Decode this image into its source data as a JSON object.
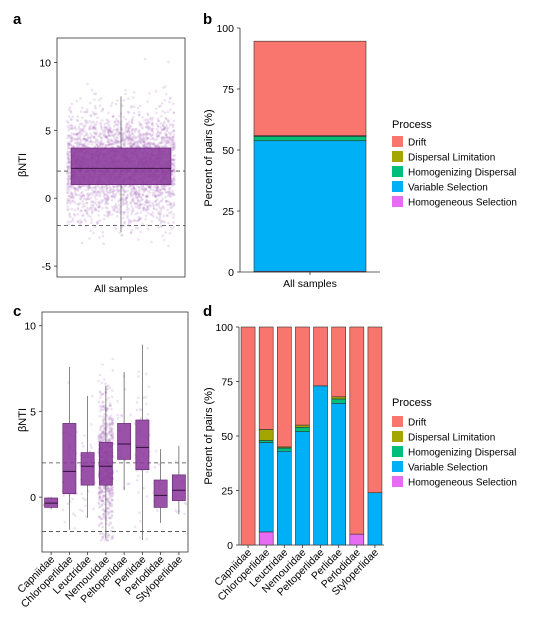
{
  "panel_letters": [
    "a",
    "b",
    "c",
    "d"
  ],
  "colors": {
    "box_fill": "#8B3A9B",
    "box_stroke": "#6a2a78",
    "jitter": "#b07cc6",
    "Drift": "#F8766D",
    "Dispersal Limitation": "#A3A500",
    "Homogenizing Dispersal": "#00BF7D",
    "Variable Selection": "#00B0F6",
    "Homogeneous Selection": "#E76BF3"
  },
  "chart_data": [
    {
      "id": "a",
      "type": "box",
      "ylabel": "βNTI",
      "categories": [
        "All samples"
      ],
      "ylim": [
        -5.8,
        11.8
      ],
      "yticks": [
        -5,
        0,
        5,
        10
      ],
      "reference_lines": [
        -2,
        2
      ],
      "boxes": [
        {
          "category": "All samples",
          "q1": 1.0,
          "median": 2.2,
          "q3": 3.7,
          "whisker_low": -2.5,
          "whisker_high": 7.5
        }
      ],
      "jitter": {
        "n": 3000,
        "mean": 2.4,
        "sd": 2.0,
        "min": -5.2,
        "max": 11.5
      }
    },
    {
      "id": "b",
      "type": "stacked_bar",
      "ylabel": "Percent of pairs (%)",
      "categories": [
        "All samples"
      ],
      "ylim": [
        0,
        100
      ],
      "yticks": [
        0,
        25,
        50,
        75,
        100
      ],
      "legend_title": "Process",
      "series": [
        {
          "name": "Homogeneous Selection",
          "values": [
            0.3
          ]
        },
        {
          "name": "Variable Selection",
          "values": [
            53.5
          ]
        },
        {
          "name": "Homogenizing Dispersal",
          "values": [
            1.8
          ]
        },
        {
          "name": "Dispersal Limitation",
          "values": [
            0.3
          ]
        },
        {
          "name": "Drift",
          "values": [
            38.7
          ]
        }
      ]
    },
    {
      "id": "c",
      "type": "box",
      "ylabel": "βNTI",
      "categories": [
        "Capniidae",
        "Chloroperlidae",
        "Leuctridae",
        "Nemouridae",
        "Peltoperlidae",
        "Perlidae",
        "Perlodidae",
        "Styloperlidae"
      ],
      "ylim": [
        -3.2,
        10.8
      ],
      "yticks": [
        0,
        5,
        10
      ],
      "reference_lines": [
        -2,
        2
      ],
      "boxes": [
        {
          "category": "Capniidae",
          "q1": -0.6,
          "median": -0.35,
          "q3": -0.05,
          "whisker_low": -0.7,
          "whisker_high": 0.0
        },
        {
          "category": "Chloroperlidae",
          "q1": 0.2,
          "median": 1.5,
          "q3": 4.3,
          "whisker_low": -1.9,
          "whisker_high": 7.6
        },
        {
          "category": "Leuctridae",
          "q1": 0.7,
          "median": 1.8,
          "q3": 2.6,
          "whisker_low": -1.2,
          "whisker_high": 5.9
        },
        {
          "category": "Nemouridae",
          "q1": 0.7,
          "median": 1.8,
          "q3": 3.2,
          "whisker_low": -2.4,
          "whisker_high": 6.5
        },
        {
          "category": "Peltoperlidae",
          "q1": 2.2,
          "median": 3.1,
          "q3": 4.3,
          "whisker_low": 0.4,
          "whisker_high": 7.3
        },
        {
          "category": "Perlidae",
          "q1": 1.6,
          "median": 2.9,
          "q3": 4.5,
          "whisker_low": -2.5,
          "whisker_high": 8.9
        },
        {
          "category": "Perlodidae",
          "q1": -0.6,
          "median": 0.1,
          "q3": 1.0,
          "whisker_low": -1.5,
          "whisker_high": 2.8
        },
        {
          "category": "Styloperlidae",
          "q1": -0.2,
          "median": 0.4,
          "q3": 1.3,
          "whisker_low": -1.0,
          "whisker_high": 3.0
        }
      ],
      "jitter": [
        {
          "category": "Capniidae",
          "n": 4,
          "mean": -0.3,
          "sd": 0.3,
          "min": -0.7,
          "max": 0.0
        },
        {
          "category": "Chloroperlidae",
          "n": 30,
          "mean": 2.1,
          "sd": 2.3,
          "min": -1.9,
          "max": 7.6
        },
        {
          "category": "Leuctridae",
          "n": 40,
          "mean": 1.7,
          "sd": 1.6,
          "min": -1.2,
          "max": 5.9
        },
        {
          "category": "Nemouridae",
          "n": 700,
          "mean": 2.0,
          "sd": 2.0,
          "min": -2.6,
          "max": 10.2
        },
        {
          "category": "Peltoperlidae",
          "n": 25,
          "mean": 3.2,
          "sd": 1.7,
          "min": 0.4,
          "max": 7.3
        },
        {
          "category": "Perlidae",
          "n": 60,
          "mean": 3.0,
          "sd": 2.2,
          "min": -2.5,
          "max": 8.9
        },
        {
          "category": "Perlodidae",
          "n": 15,
          "mean": 0.3,
          "sd": 1.2,
          "min": -1.5,
          "max": 2.8
        },
        {
          "category": "Styloperlidae",
          "n": 12,
          "mean": 0.5,
          "sd": 1.1,
          "min": -1.0,
          "max": 3.0
        }
      ]
    },
    {
      "id": "d",
      "type": "stacked_bar",
      "ylabel": "Percent of pairs (%)",
      "categories": [
        "Capniidae",
        "Chloroperlidae",
        "Leuctridae",
        "Nemouridae",
        "Peltoperlidae",
        "Perlidae",
        "Perlodidae",
        "Styloperlidae"
      ],
      "ylim": [
        0,
        100
      ],
      "yticks": [
        0,
        25,
        50,
        75,
        100
      ],
      "legend_title": "Process",
      "series": [
        {
          "name": "Homogeneous Selection",
          "values": [
            0,
            6,
            0,
            0,
            0,
            0,
            5,
            0
          ]
        },
        {
          "name": "Variable Selection",
          "values": [
            0,
            41,
            43,
            52,
            73,
            65,
            0,
            24
          ]
        },
        {
          "name": "Homogenizing Dispersal",
          "values": [
            0,
            1,
            1.5,
            2,
            0,
            2,
            0,
            0
          ]
        },
        {
          "name": "Dispersal Limitation",
          "values": [
            0,
            5,
            0.5,
            1,
            0,
            1,
            0,
            0
          ]
        },
        {
          "name": "Drift",
          "values": [
            100,
            47,
            55,
            45,
            27,
            32,
            95,
            76
          ]
        }
      ]
    }
  ]
}
